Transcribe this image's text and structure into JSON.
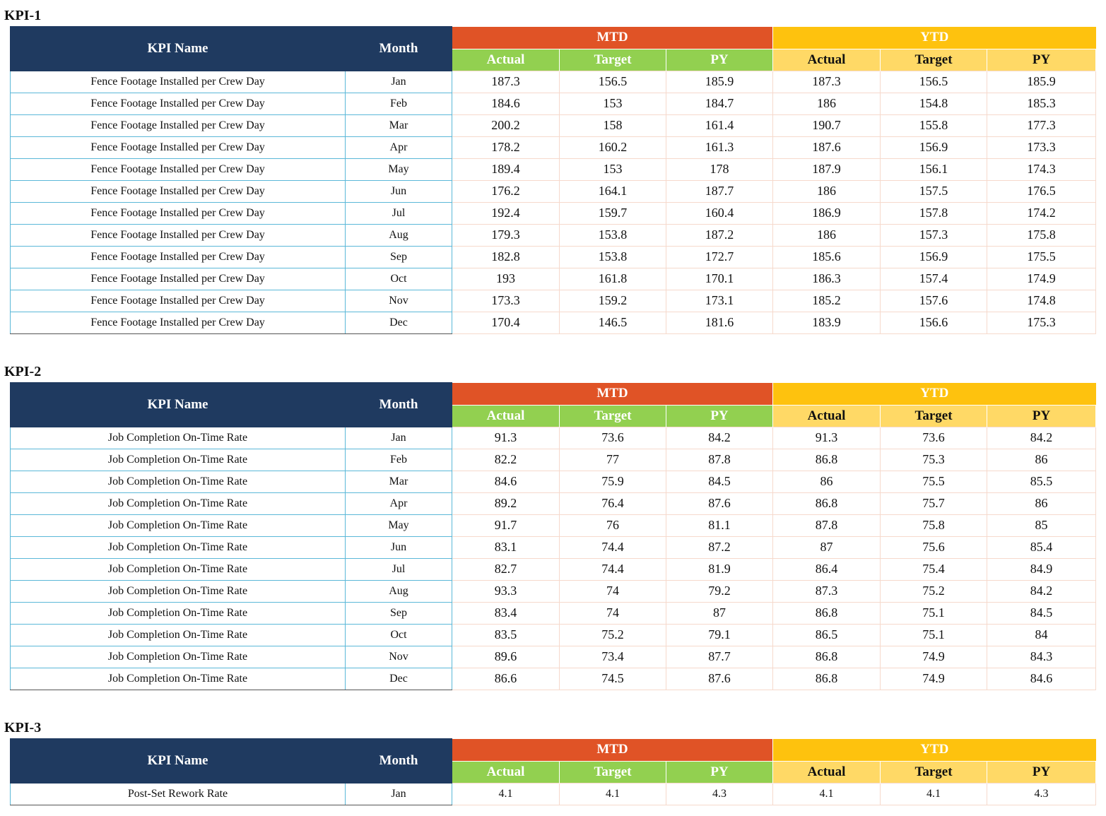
{
  "columns": {
    "kpi_name": "KPI Name",
    "month": "Month",
    "mtd": "MTD",
    "ytd": "YTD",
    "actual": "Actual",
    "target": "Target",
    "py": "PY"
  },
  "kpis": [
    {
      "title": "KPI-1",
      "rows": [
        {
          "name": "Fence Footage Installed per Crew Day",
          "month": "Jan",
          "mtd": [
            "187.3",
            "156.5",
            "185.9"
          ],
          "ytd": [
            "187.3",
            "156.5",
            "185.9"
          ]
        },
        {
          "name": "Fence Footage Installed per Crew Day",
          "month": "Feb",
          "mtd": [
            "184.6",
            "153",
            "184.7"
          ],
          "ytd": [
            "186",
            "154.8",
            "185.3"
          ]
        },
        {
          "name": "Fence Footage Installed per Crew Day",
          "month": "Mar",
          "mtd": [
            "200.2",
            "158",
            "161.4"
          ],
          "ytd": [
            "190.7",
            "155.8",
            "177.3"
          ]
        },
        {
          "name": "Fence Footage Installed per Crew Day",
          "month": "Apr",
          "mtd": [
            "178.2",
            "160.2",
            "161.3"
          ],
          "ytd": [
            "187.6",
            "156.9",
            "173.3"
          ]
        },
        {
          "name": "Fence Footage Installed per Crew Day",
          "month": "May",
          "mtd": [
            "189.4",
            "153",
            "178"
          ],
          "ytd": [
            "187.9",
            "156.1",
            "174.3"
          ]
        },
        {
          "name": "Fence Footage Installed per Crew Day",
          "month": "Jun",
          "mtd": [
            "176.2",
            "164.1",
            "187.7"
          ],
          "ytd": [
            "186",
            "157.5",
            "176.5"
          ]
        },
        {
          "name": "Fence Footage Installed per Crew Day",
          "month": "Jul",
          "mtd": [
            "192.4",
            "159.7",
            "160.4"
          ],
          "ytd": [
            "186.9",
            "157.8",
            "174.2"
          ]
        },
        {
          "name": "Fence Footage Installed per Crew Day",
          "month": "Aug",
          "mtd": [
            "179.3",
            "153.8",
            "187.2"
          ],
          "ytd": [
            "186",
            "157.3",
            "175.8"
          ]
        },
        {
          "name": "Fence Footage Installed per Crew Day",
          "month": "Sep",
          "mtd": [
            "182.8",
            "153.8",
            "172.7"
          ],
          "ytd": [
            "185.6",
            "156.9",
            "175.5"
          ]
        },
        {
          "name": "Fence Footage Installed per Crew Day",
          "month": "Oct",
          "mtd": [
            "193",
            "161.8",
            "170.1"
          ],
          "ytd": [
            "186.3",
            "157.4",
            "174.9"
          ]
        },
        {
          "name": "Fence Footage Installed per Crew Day",
          "month": "Nov",
          "mtd": [
            "173.3",
            "159.2",
            "173.1"
          ],
          "ytd": [
            "185.2",
            "157.6",
            "174.8"
          ]
        },
        {
          "name": "Fence Footage Installed per Crew Day",
          "month": "Dec",
          "mtd": [
            "170.4",
            "146.5",
            "181.6"
          ],
          "ytd": [
            "183.9",
            "156.6",
            "175.3"
          ]
        }
      ]
    },
    {
      "title": "KPI-2",
      "rows": [
        {
          "name": "Job Completion On-Time Rate",
          "month": "Jan",
          "mtd": [
            "91.3",
            "73.6",
            "84.2"
          ],
          "ytd": [
            "91.3",
            "73.6",
            "84.2"
          ]
        },
        {
          "name": "Job Completion On-Time Rate",
          "month": "Feb",
          "mtd": [
            "82.2",
            "77",
            "87.8"
          ],
          "ytd": [
            "86.8",
            "75.3",
            "86"
          ]
        },
        {
          "name": "Job Completion On-Time Rate",
          "month": "Mar",
          "mtd": [
            "84.6",
            "75.9",
            "84.5"
          ],
          "ytd": [
            "86",
            "75.5",
            "85.5"
          ]
        },
        {
          "name": "Job Completion On-Time Rate",
          "month": "Apr",
          "mtd": [
            "89.2",
            "76.4",
            "87.6"
          ],
          "ytd": [
            "86.8",
            "75.7",
            "86"
          ]
        },
        {
          "name": "Job Completion On-Time Rate",
          "month": "May",
          "mtd": [
            "91.7",
            "76",
            "81.1"
          ],
          "ytd": [
            "87.8",
            "75.8",
            "85"
          ]
        },
        {
          "name": "Job Completion On-Time Rate",
          "month": "Jun",
          "mtd": [
            "83.1",
            "74.4",
            "87.2"
          ],
          "ytd": [
            "87",
            "75.6",
            "85.4"
          ]
        },
        {
          "name": "Job Completion On-Time Rate",
          "month": "Jul",
          "mtd": [
            "82.7",
            "74.4",
            "81.9"
          ],
          "ytd": [
            "86.4",
            "75.4",
            "84.9"
          ]
        },
        {
          "name": "Job Completion On-Time Rate",
          "month": "Aug",
          "mtd": [
            "93.3",
            "74",
            "79.2"
          ],
          "ytd": [
            "87.3",
            "75.2",
            "84.2"
          ]
        },
        {
          "name": "Job Completion On-Time Rate",
          "month": "Sep",
          "mtd": [
            "83.4",
            "74",
            "87"
          ],
          "ytd": [
            "86.8",
            "75.1",
            "84.5"
          ]
        },
        {
          "name": "Job Completion On-Time Rate",
          "month": "Oct",
          "mtd": [
            "83.5",
            "75.2",
            "79.1"
          ],
          "ytd": [
            "86.5",
            "75.1",
            "84"
          ]
        },
        {
          "name": "Job Completion On-Time Rate",
          "month": "Nov",
          "mtd": [
            "89.6",
            "73.4",
            "87.7"
          ],
          "ytd": [
            "86.8",
            "74.9",
            "84.3"
          ]
        },
        {
          "name": "Job Completion On-Time Rate",
          "month": "Dec",
          "mtd": [
            "86.6",
            "74.5",
            "87.6"
          ],
          "ytd": [
            "86.8",
            "74.9",
            "84.6"
          ]
        }
      ]
    },
    {
      "title": "KPI-3",
      "rows": [
        {
          "name": "Post-Set Rework Rate",
          "month": "Jan",
          "mtd": [
            "4.1",
            "4.1",
            "4.3"
          ],
          "ytd": [
            "4.1",
            "4.1",
            "4.3"
          ]
        }
      ]
    }
  ],
  "colors": {
    "navy_header": "#1f3a60",
    "mtd_header": "#e05326",
    "ytd_header": "#fec20e",
    "mtd_subheader": "#92d050",
    "ytd_subheader": "#ffd966"
  }
}
